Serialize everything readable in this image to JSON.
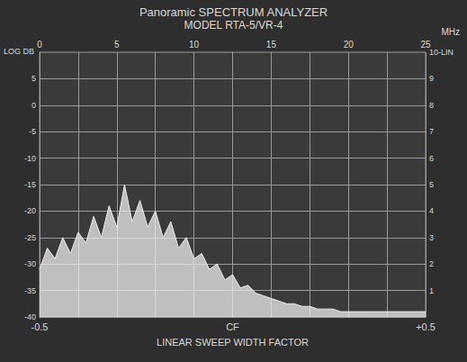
{
  "chart_data": {
    "type": "line",
    "title": "Panoramic SPECTRUM ANALYZER",
    "subtitle": "MODEL RTA-5/VR-4",
    "x_label": "MHz",
    "x2_label": "LINEAR SWEEP WIDTH FACTOR",
    "y_label": "LOG DB",
    "x": [
      0,
      0.5,
      1,
      1.5,
      2,
      2.5,
      3,
      3.5,
      4,
      4.5,
      5,
      5.5,
      6,
      6.5,
      7,
      7.5,
      8,
      8.5,
      9,
      9.5,
      10,
      10.5,
      11,
      11.5,
      12,
      12.5,
      13,
      13.5,
      14,
      14.5,
      15,
      15.5,
      16,
      16.5,
      17,
      17.5,
      18,
      18.5,
      19,
      19.5,
      20,
      20.5,
      21,
      21.5,
      22,
      22.5,
      23,
      23.5,
      24,
      24.5,
      25
    ],
    "values": [
      -31,
      -27,
      -29,
      -25,
      -28,
      -24,
      -26,
      -21,
      -25,
      -19,
      -23,
      -15,
      -22,
      -18,
      -23,
      -20,
      -25,
      -22,
      -27,
      -25,
      -29,
      -28,
      -31,
      -30,
      -33,
      -32,
      -34.5,
      -34,
      -35.5,
      -36,
      -36.5,
      -37,
      -37.5,
      -37.5,
      -38,
      -38,
      -38.5,
      -38.5,
      -38.5,
      -39,
      -39,
      -39,
      -39,
      -39,
      -39,
      -39,
      -39,
      -39,
      -39,
      -39,
      -39
    ],
    "color": "#ececec",
    "xlim": [
      0,
      25
    ],
    "xticks": [
      0,
      5,
      10,
      15,
      20,
      25
    ],
    "x2lim": [
      -0.5,
      0.5
    ],
    "x2ticks": [
      -0.5,
      {
        "value": 0,
        "label": "CF"
      },
      {
        "value": 0.5,
        "label": "+0.5"
      }
    ],
    "ylim": [
      -40,
      10
    ],
    "yticks": [
      -40,
      -35,
      -30,
      -25,
      -20,
      -15,
      -10,
      -5,
      0,
      5
    ],
    "y2lim": [
      0,
      10
    ],
    "y2ticks": [
      1,
      2,
      3,
      4,
      5,
      6,
      7,
      8,
      9,
      {
        "value": 10,
        "label": "10-LIN"
      }
    ],
    "grid": true
  }
}
